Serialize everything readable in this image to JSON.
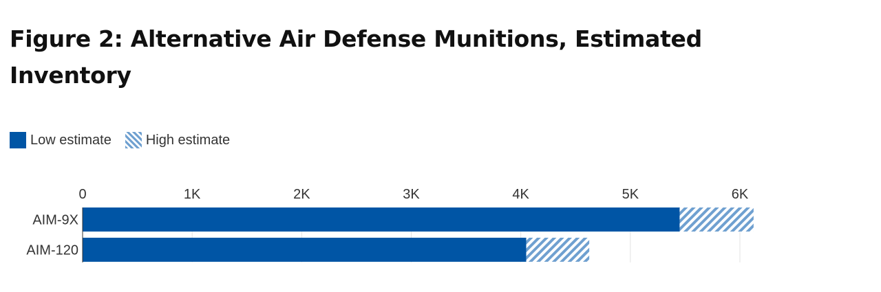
{
  "chart_data": {
    "type": "bar",
    "orientation": "horizontal",
    "stacked": true,
    "title": "Figure 2: Alternative Air Defense Munitions, Estimated Inventory",
    "xlabel": "",
    "ylabel": "",
    "categories": [
      "AIM-9X",
      "AIM-120"
    ],
    "series": [
      {
        "name": "Low estimate",
        "values": [
          5450,
          4050
        ],
        "color": "#0055a5",
        "pattern": "solid"
      },
      {
        "name": "High estimate",
        "values": [
          675,
          575
        ],
        "color": "#6fa0d0",
        "pattern": "hatched"
      }
    ],
    "xlim": [
      0,
      6000
    ],
    "xticks": [
      0,
      1000,
      2000,
      3000,
      4000,
      5000,
      6000
    ],
    "xtick_labels": [
      "0",
      "1K",
      "2K",
      "3K",
      "4K",
      "5K",
      "6K"
    ],
    "grid": true,
    "legend_position": "top-left"
  }
}
